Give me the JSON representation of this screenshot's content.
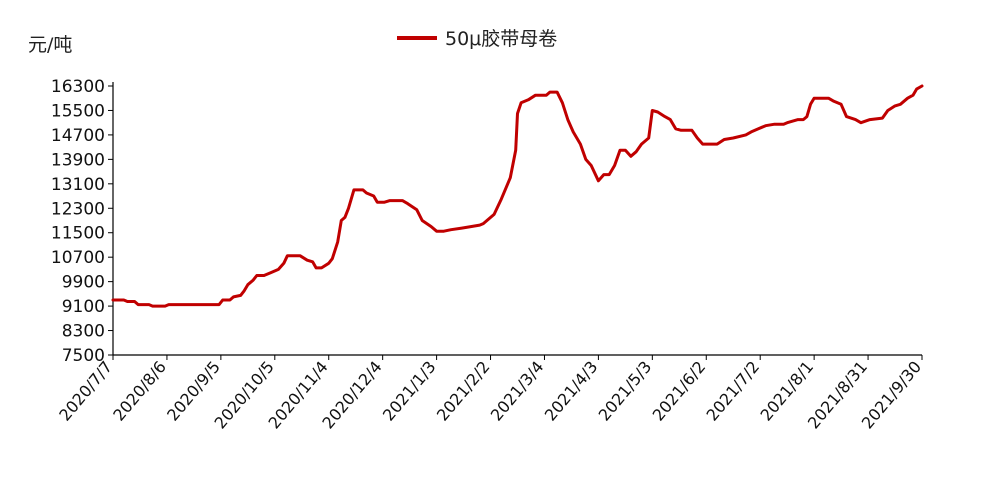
{
  "chart_data": {
    "type": "line",
    "title": "",
    "ylabel": "元/吨",
    "xlabel": "",
    "ylim": [
      7500,
      16300
    ],
    "yticks": [
      7500,
      8300,
      9100,
      9900,
      10700,
      11500,
      12300,
      13100,
      13900,
      14700,
      15500,
      16300
    ],
    "grid": false,
    "legend_position": "top-center",
    "xtick_labels": [
      "2020/7/7",
      "2020/8/6",
      "2020/9/5",
      "2020/10/5",
      "2020/11/4",
      "2020/12/4",
      "2021/1/3",
      "2021/2/2",
      "2021/3/4",
      "2021/4/3",
      "2021/5/3",
      "2021/6/2",
      "2021/7/2",
      "2021/8/1",
      "2021/8/31",
      "2021/9/30"
    ],
    "series": [
      {
        "name": "50μ胶带母卷",
        "color": "#C00000",
        "points": [
          [
            "2020/7/7",
            9300
          ],
          [
            "2020/7/13",
            9300
          ],
          [
            "2020/7/15",
            9250
          ],
          [
            "2020/7/19",
            9250
          ],
          [
            "2020/7/21",
            9150
          ],
          [
            "2020/7/27",
            9150
          ],
          [
            "2020/7/29",
            9100
          ],
          [
            "2020/8/5",
            9100
          ],
          [
            "2020/8/7",
            9150
          ],
          [
            "2020/8/15",
            9150
          ],
          [
            "2020/9/1",
            9150
          ],
          [
            "2020/9/4",
            9150
          ],
          [
            "2020/9/6",
            9300
          ],
          [
            "2020/9/10",
            9300
          ],
          [
            "2020/9/12",
            9400
          ],
          [
            "2020/9/16",
            9450
          ],
          [
            "2020/9/18",
            9600
          ],
          [
            "2020/9/20",
            9800
          ],
          [
            "2020/9/23",
            9950
          ],
          [
            "2020/9/25",
            10100
          ],
          [
            "2020/9/29",
            10100
          ],
          [
            "2020/10/3",
            10200
          ],
          [
            "2020/10/7",
            10300
          ],
          [
            "2020/10/10",
            10500
          ],
          [
            "2020/10/12",
            10750
          ],
          [
            "2020/10/19",
            10750
          ],
          [
            "2020/10/23",
            10600
          ],
          [
            "2020/10/26",
            10550
          ],
          [
            "2020/10/28",
            10350
          ],
          [
            "2020/10/31",
            10350
          ],
          [
            "2020/11/4",
            10500
          ],
          [
            "2020/11/6",
            10650
          ],
          [
            "2020/11/9",
            11200
          ],
          [
            "2020/11/11",
            11900
          ],
          [
            "2020/11/13",
            12000
          ],
          [
            "2020/11/15",
            12300
          ],
          [
            "2020/11/18",
            12900
          ],
          [
            "2020/11/23",
            12900
          ],
          [
            "2020/11/25",
            12800
          ],
          [
            "2020/11/29",
            12700
          ],
          [
            "2020/12/1",
            12500
          ],
          [
            "2020/12/5",
            12500
          ],
          [
            "2020/12/8",
            12550
          ],
          [
            "2020/12/15",
            12550
          ],
          [
            "2020/12/18",
            12450
          ],
          [
            "2020/12/23",
            12250
          ],
          [
            "2020/12/26",
            11900
          ],
          [
            "2020/12/31",
            11700
          ],
          [
            "2021/1/3",
            11550
          ],
          [
            "2021/1/7",
            11550
          ],
          [
            "2021/1/11",
            11600
          ],
          [
            "2021/1/17",
            11650
          ],
          [
            "2021/1/22",
            11700
          ],
          [
            "2021/1/27",
            11750
          ],
          [
            "2021/1/29",
            11800
          ],
          [
            "2021/2/4",
            12100
          ],
          [
            "2021/2/8",
            12600
          ],
          [
            "2021/2/13",
            13300
          ],
          [
            "2021/2/16",
            14200
          ],
          [
            "2021/2/17",
            15400
          ],
          [
            "2021/2/19",
            15750
          ],
          [
            "2021/2/23",
            15850
          ],
          [
            "2021/2/27",
            16000
          ],
          [
            "2021/3/5",
            16000
          ],
          [
            "2021/3/7",
            16100
          ],
          [
            "2021/3/11",
            16100
          ],
          [
            "2021/3/14",
            15750
          ],
          [
            "2021/3/17",
            15200
          ],
          [
            "2021/3/20",
            14800
          ],
          [
            "2021/3/24",
            14400
          ],
          [
            "2021/3/27",
            13900
          ],
          [
            "2021/3/30",
            13700
          ],
          [
            "2021/4/3",
            13200
          ],
          [
            "2021/4/6",
            13400
          ],
          [
            "2021/4/9",
            13400
          ],
          [
            "2021/4/12",
            13700
          ],
          [
            "2021/4/15",
            14200
          ],
          [
            "2021/4/18",
            14200
          ],
          [
            "2021/4/21",
            14000
          ],
          [
            "2021/4/24",
            14150
          ],
          [
            "2021/4/27",
            14400
          ],
          [
            "2021/5/1",
            14600
          ],
          [
            "2021/5/3",
            15500
          ],
          [
            "2021/5/6",
            15450
          ],
          [
            "2021/5/10",
            15300
          ],
          [
            "2021/5/13",
            15200
          ],
          [
            "2021/5/16",
            14900
          ],
          [
            "2021/5/19",
            14850
          ],
          [
            "2021/5/25",
            14850
          ],
          [
            "2021/5/28",
            14600
          ],
          [
            "2021/5/31",
            14400
          ],
          [
            "2021/6/8",
            14400
          ],
          [
            "2021/6/12",
            14550
          ],
          [
            "2021/6/17",
            14600
          ],
          [
            "2021/6/24",
            14700
          ],
          [
            "2021/6/27",
            14800
          ],
          [
            "2021/7/1",
            14900
          ],
          [
            "2021/7/5",
            15000
          ],
          [
            "2021/7/10",
            15050
          ],
          [
            "2021/7/15",
            15050
          ],
          [
            "2021/7/17",
            15100
          ],
          [
            "2021/7/23",
            15200
          ],
          [
            "2021/7/26",
            15200
          ],
          [
            "2021/7/28",
            15300
          ],
          [
            "2021/7/30",
            15700
          ],
          [
            "2021/8/1",
            15900
          ],
          [
            "2021/8/9",
            15900
          ],
          [
            "2021/8/12",
            15800
          ],
          [
            "2021/8/16",
            15700
          ],
          [
            "2021/8/19",
            15300
          ],
          [
            "2021/8/24",
            15200
          ],
          [
            "2021/8/27",
            15100
          ],
          [
            "2021/9/1",
            15200
          ],
          [
            "2021/9/8",
            15250
          ],
          [
            "2021/9/11",
            15500
          ],
          [
            "2021/9/15",
            15650
          ],
          [
            "2021/9/18",
            15700
          ],
          [
            "2021/9/22",
            15900
          ],
          [
            "2021/9/25",
            16000
          ],
          [
            "2021/9/27",
            16200
          ],
          [
            "2021/9/30",
            16300
          ]
        ]
      }
    ]
  }
}
